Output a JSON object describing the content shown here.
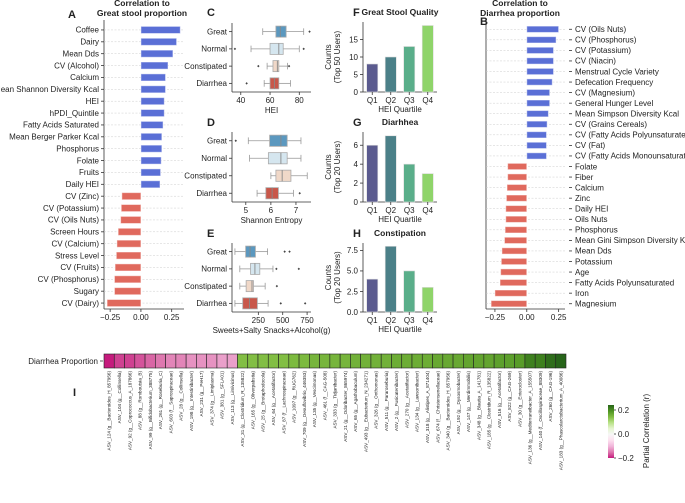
{
  "panel_labels": [
    "A",
    "B",
    "C",
    "D",
    "E",
    "F",
    "G",
    "H",
    "I"
  ],
  "chart_data": [
    {
      "id": "A",
      "type": "bar",
      "orientation": "horizontal",
      "title": "Correlation to\nGreat stool proportion",
      "xlim": [
        -0.3,
        0.35
      ],
      "xticks": [
        -0.25,
        0.0,
        0.25
      ],
      "xtick_labels": [
        "−0.25",
        "0.00",
        "0.25"
      ],
      "grid": true,
      "categories": [
        "Coffee",
        "Dairy",
        "Mean Dds",
        "CV (Alcohol)",
        "Calcium",
        "Mean Shannon Diversity Kcal",
        "HEI",
        "hPDI_Quintile",
        "Fatty Acids Saturated",
        "Mean Berger Parker Kcal",
        "Phosphorus",
        "Folate",
        "Fruits",
        "Daily HEI",
        "CV (Zinc)",
        "CV (Potassium)",
        "CV (Oils Nuts)",
        "Screen Hours",
        "CV (Calcium)",
        "Stress Level",
        "CV (Fruits)",
        "CV (Phosphorus)",
        "Sugary",
        "CV (Dairy)"
      ],
      "values": [
        0.32,
        0.29,
        0.26,
        0.22,
        0.2,
        0.2,
        0.19,
        0.19,
        0.18,
        0.17,
        0.17,
        0.165,
        0.16,
        0.155,
        -0.155,
        -0.16,
        -0.165,
        -0.185,
        -0.195,
        -0.2,
        -0.21,
        -0.215,
        -0.215,
        -0.275
      ],
      "colors": {
        "positive": "#5a6fd6",
        "negative": "#e0695d"
      }
    },
    {
      "id": "B",
      "type": "bar",
      "orientation": "horizontal",
      "title": "Correlation to\nDiarrhea proportion",
      "xlim": [
        -0.32,
        0.3
      ],
      "xticks": [
        -0.25,
        0.0,
        0.25
      ],
      "xtick_labels": [
        "−0.25",
        "0.00",
        "0.25"
      ],
      "grid": true,
      "categories": [
        "CV (Oils Nuts)",
        "CV (Phosphorus)",
        "CV (Potassium)",
        "CV (Niacin)",
        "Menstrual Cycle Variety",
        "Defecation Frequency",
        "CV (Magnesium)",
        "General Hunger Level",
        "Mean Simpson Diversity Kcal",
        "CV (Grains Cereals)",
        "CV (Fatty Acids Polyunsaturated)",
        "CV (Fat)",
        "CV (Fatty Acids Monounsaturated)",
        "Folate",
        "Fiber",
        "Calcium",
        "Zinc",
        "Daily HEI",
        "Oils Nuts",
        "Phosphorus",
        "Mean Gini Simpson Diversity Kcal",
        "Mean Dds",
        "Potassium",
        "Age",
        "Fatty Acids Polyunsaturated",
        "Iron",
        "Magnesium"
      ],
      "values": [
        0.25,
        0.23,
        0.21,
        0.21,
        0.21,
        0.2,
        0.18,
        0.18,
        0.17,
        0.16,
        0.155,
        0.155,
        0.155,
        -0.15,
        -0.15,
        -0.155,
        -0.16,
        -0.165,
        -0.165,
        -0.17,
        -0.175,
        -0.195,
        -0.2,
        -0.205,
        -0.21,
        -0.25,
        -0.28
      ],
      "colors": {
        "positive": "#5a6fd6",
        "negative": "#e0695d"
      }
    },
    {
      "id": "C",
      "type": "box",
      "xlabel": "HEI",
      "xlim": [
        34,
        88
      ],
      "xticks": [
        40,
        60,
        80
      ],
      "xtick_labels": [
        "40",
        "60",
        "80"
      ],
      "categories": [
        "Great",
        "Normal",
        "Constipated",
        "Diarrhea"
      ],
      "boxes": [
        {
          "whislo": 55,
          "q1": 64,
          "med": 67,
          "q3": 71,
          "whishi": 83,
          "fliers": [
            87
          ]
        },
        {
          "whislo": 47,
          "q1": 60,
          "med": 66,
          "q3": 69,
          "whishi": 80,
          "fliers": [
            36,
            83
          ]
        },
        {
          "whislo": 58,
          "q1": 62,
          "med": 65,
          "q3": 66,
          "whishi": 72,
          "fliers": [
            52,
            73
          ]
        },
        {
          "whislo": 56,
          "q1": 60,
          "med": 63,
          "q3": 66,
          "whishi": 74,
          "fliers": [
            44
          ]
        }
      ],
      "colors": [
        "#5b98bf",
        "#d5e6ef",
        "#f0d8c8",
        "#c8574a"
      ]
    },
    {
      "id": "D",
      "type": "box",
      "xlabel": "Shannon Entropy",
      "xlim": [
        4.45,
        7.6
      ],
      "xticks": [
        5,
        6,
        7
      ],
      "xtick_labels": [
        "5",
        "6",
        "7"
      ],
      "categories": [
        "Great",
        "Normal",
        "Constipated",
        "Diarrhea"
      ],
      "boxes": [
        {
          "whislo": 5.1,
          "q1": 5.95,
          "med": 6.4,
          "q3": 6.65,
          "whishi": 7.2,
          "fliers": [
            4.6
          ]
        },
        {
          "whislo": 5.15,
          "q1": 5.9,
          "med": 6.4,
          "q3": 6.65,
          "whishi": 7.2,
          "fliers": []
        },
        {
          "whislo": 6.0,
          "q1": 6.2,
          "med": 6.45,
          "q3": 6.8,
          "whishi": 7.45,
          "fliers": []
        },
        {
          "whislo": 5.45,
          "q1": 5.8,
          "med": 6.05,
          "q3": 6.3,
          "whishi": 6.9,
          "fliers": [
            7.15
          ]
        }
      ],
      "colors": [
        "#5b98bf",
        "#d5e6ef",
        "#f0d8c8",
        "#c8574a"
      ]
    },
    {
      "id": "E",
      "type": "box",
      "xlabel": "Sweets+Salty Snacks+Alcohol(g)",
      "xlim": [
        -20,
        790
      ],
      "xticks": [
        250,
        500,
        750
      ],
      "xtick_labels": [
        "250",
        "500",
        "750"
      ],
      "categories": [
        "Great",
        "Normal",
        "Constipated",
        "Diarrhea"
      ],
      "boxes": [
        {
          "whislo": 10,
          "q1": 120,
          "med": 165,
          "q3": 220,
          "whishi": 345,
          "fliers": [
            520,
            570
          ]
        },
        {
          "whislo": 60,
          "q1": 170,
          "med": 215,
          "q3": 265,
          "whishi": 400,
          "fliers": [
            435,
            665
          ]
        },
        {
          "whislo": 60,
          "q1": 125,
          "med": 185,
          "q3": 200,
          "whishi": 320,
          "fliers": [
            440
          ]
        },
        {
          "whislo": 10,
          "q1": 90,
          "med": 160,
          "q3": 240,
          "whishi": 350,
          "fliers": [
            480,
            730
          ]
        }
      ],
      "colors": [
        "#5b98bf",
        "#d5e6ef",
        "#f0d8c8",
        "#c8574a"
      ]
    },
    {
      "id": "F",
      "type": "bar",
      "title": "Great Stool Quality",
      "xlabel": "HEI Quartile",
      "ylabel": "Counts\n(Top 50 Users)",
      "ylim": [
        0,
        20
      ],
      "yticks": [
        0,
        5,
        10,
        15
      ],
      "ytick_labels": [
        "0",
        "5",
        "10",
        "15"
      ],
      "categories": [
        "Q1",
        "Q2",
        "Q3",
        "Q4"
      ],
      "values": [
        8,
        10,
        13,
        19
      ],
      "colors": [
        "#5b5b8f",
        "#4b8088",
        "#5aae8a",
        "#8fd46a"
      ]
    },
    {
      "id": "G",
      "type": "bar",
      "title": "Diarhhea",
      "xlabel": "HEI Quartile",
      "ylabel": "Counts\n(Top 20 Users)",
      "ylim": [
        0,
        7.4
      ],
      "yticks": [
        0,
        2,
        4,
        6
      ],
      "ytick_labels": [
        "0",
        "2",
        "4",
        "6"
      ],
      "categories": [
        "Q1",
        "Q2",
        "Q3",
        "Q4"
      ],
      "values": [
        6,
        7,
        4,
        3
      ],
      "colors": [
        "#5b5b8f",
        "#4b8088",
        "#5aae8a",
        "#8fd46a"
      ]
    },
    {
      "id": "H",
      "type": "bar",
      "title": "Constipation",
      "xlabel": "HEI Quartile",
      "ylabel": "Counts\n(Top 20 Users)",
      "ylim": [
        0,
        8.4
      ],
      "yticks": [
        0,
        2.5,
        5,
        7.5
      ],
      "ytick_labels": [
        "0.0",
        "2.5",
        "5.0",
        "7.5"
      ],
      "categories": [
        "Q1",
        "Q2",
        "Q3",
        "Q4"
      ],
      "values": [
        4,
        8,
        5,
        3
      ],
      "colors": [
        "#5b5b8f",
        "#4b8088",
        "#5aae8a",
        "#8fd46a"
      ]
    },
    {
      "id": "I",
      "type": "heatmap",
      "row_label": "Diarrhea Proportion",
      "colorbar_label": "Partial Correlation (r)",
      "clim": [
        -0.22,
        0.22
      ],
      "colorbar_ticks": [
        "0.2",
        "0.0",
        "−0.2"
      ],
      "colormap": [
        "#c51b7d",
        "#de77ae",
        "#f1b6da",
        "#fde0ef",
        "#f7f7f7",
        "#e6f5d0",
        "#b8e186",
        "#7fbc41",
        "#4d9221",
        "#276419"
      ],
      "columns": [
        "ASV_124 (g__Bacteroides_H_857956)",
        "ASV_104 (g__Collinsella)",
        "ASV_92 (g__Coprococcus_A_187866)",
        "ASV_88 (g__Romboutsia_B)",
        "ASV_99 (g__Bifidobacterium_388775)",
        "ASV_261 (g__Roseburia_C)",
        "ASV_603 (f__Saprospiraceae)",
        "ASV_28 (g__Collinsella)",
        "ASV_198 (g__Intestinibacter)",
        "ASV_231 (g__PeH17)",
        "ASV_374 (g__Limiplasma)",
        "ASV_381 (g__SFLA01)",
        "ASV_113 (g__Limivicinus)",
        "ASV_31 (g__Clostridium_R_135822)",
        "ASV_165 (g__Oliverpabstia)",
        "ASV_25 (g__Brotaphodocola)",
        "ASV_64 (g__Acetatifactor)",
        "ASV_87 (f__Lachnospiraceae)",
        "ASV_1097 (g__RUG762)",
        "ASV_709 (g__Desulfovibrio_446353)",
        "ASV_135 (g__Vescimonas)",
        "ASV_461 (f__CAG-508)",
        "ASV_333 (g__Tidjanibacter)",
        "ASV_21 (g__Odoribacter_865974)",
        "ASV_65 (g__Agathobaculum)",
        "ASV_493 (g__Eubacterium_N_234271)",
        "ASV_326 (g__Onthomonas)",
        "ASV_511 (g__Pararoseburia)",
        "ASV_2 (g__Fusicatenibacter)",
        "ASV_270 (g__Acetatifactor)",
        "ASV_134 (g__Lawsonibacter)",
        "ASV_318 (g__Alistipes_A_871404)",
        "ASV_674 (f__Christensenellaceae)",
        "ASV_340 (g__Bacteroides_H_857956)",
        "ASV_192 (g__Dysosmobacter)",
        "ASV_147 (g__Merdimmobilis)",
        "ASV_348 (g__Blautia_A_141781)",
        "ASV_185 (g__Clostridium_R_135822)",
        "ASV_516 (g__Acetatifactor)",
        "ASV_822 (g__CAG-269)",
        "ASV_30 (g__Enterocloster)",
        "ASV_136 (g__Mediterraneibacter_A_155507)",
        "ASV_140 (f__Oscillospiraceae_88309)",
        "ASV_260 (g__CAG-196)",
        "ASV_183 (g__Phascolarctobacterium_A_40086)"
      ],
      "values": [
        -0.22,
        -0.2,
        -0.2,
        -0.19,
        -0.18,
        -0.17,
        -0.16,
        -0.16,
        -0.15,
        -0.15,
        -0.15,
        -0.14,
        -0.14,
        0.12,
        0.12,
        0.12,
        0.12,
        0.12,
        0.125,
        0.125,
        0.13,
        0.13,
        0.13,
        0.13,
        0.135,
        0.135,
        0.135,
        0.135,
        0.14,
        0.14,
        0.14,
        0.14,
        0.145,
        0.145,
        0.145,
        0.15,
        0.15,
        0.15,
        0.155,
        0.155,
        0.16,
        0.19,
        0.19,
        0.21,
        0.22
      ]
    }
  ]
}
